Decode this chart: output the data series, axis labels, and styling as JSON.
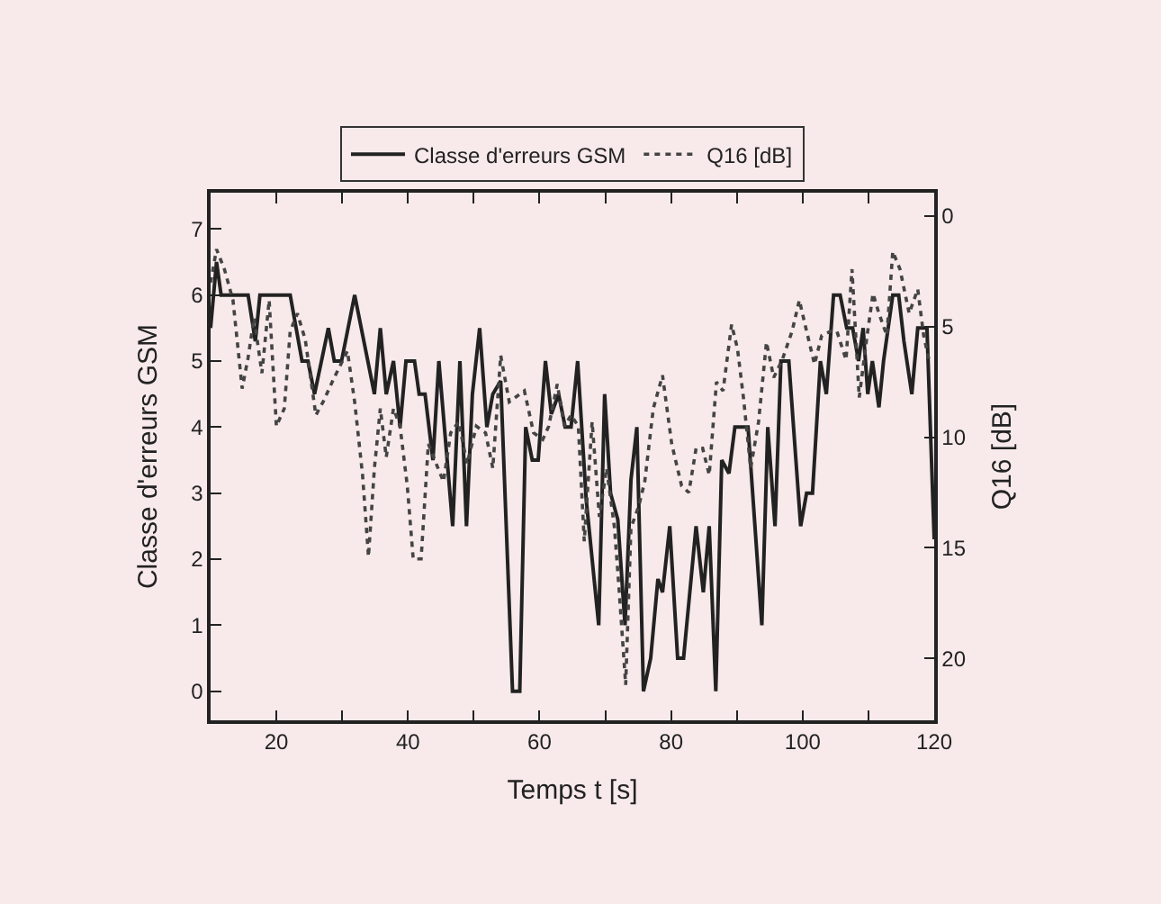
{
  "chart_data": {
    "type": "line",
    "xlabel": "Temps t [s]",
    "ylabel": "Classe d'erreurs GSM",
    "y2label": "Q16 [dB]",
    "xlim": [
      10,
      120
    ],
    "xticks": [
      20,
      {
        "value": 30,
        "label": null
      },
      40,
      {
        "value": 50,
        "label": null
      },
      60,
      {
        "value": 70,
        "label": null
      },
      80,
      {
        "value": 90,
        "label": null
      },
      100,
      {
        "value": 110,
        "label": null
      },
      120
    ],
    "ylim": [
      -0.44,
      7.55
    ],
    "yticks": [
      0,
      1,
      2,
      3,
      4,
      5,
      6,
      7
    ],
    "y2lim": [
      22.8,
      -1.06
    ],
    "y2ticks": [
      0,
      5,
      10,
      15,
      20
    ],
    "legend": "top",
    "grid": false,
    "marker": "none",
    "series": [
      {
        "name": "Classe d'erreurs GSM",
        "color": "#222222",
        "line_style": "solid",
        "x": [
          10,
          10.9,
          11.6,
          15.7,
          16.8,
          17.5,
          22.1,
          23.9,
          24.8,
          25.8,
          27.9,
          28.8,
          29.9,
          31.9,
          34.9,
          35.8,
          36.7,
          37.8,
          38.8,
          39.7,
          41,
          41.7,
          42.6,
          43.8,
          44.7,
          46.8,
          47.9,
          48.9,
          49.8,
          50.9,
          52,
          52.9,
          54.1,
          55.9,
          57,
          57.9,
          58.9,
          59.8,
          60.9,
          61.8,
          62.9,
          63.9,
          64.8,
          65.8,
          67.1,
          69,
          69.9,
          70.8,
          71.9,
          73,
          73.9,
          74.8,
          75.8,
          76.9,
          78,
          78.7,
          79.8,
          81,
          81.9,
          83.8,
          84.9,
          85.8,
          86.8,
          87.7,
          88.8,
          89.7,
          91.7,
          93.8,
          94.7,
          95.8,
          96.7,
          97.9,
          99.7,
          100.6,
          101.5,
          102.7,
          103.6,
          104.7,
          105.7,
          106.7,
          107.6,
          108.5,
          109.2,
          109.9,
          110.6,
          111.6,
          112.3,
          113.7,
          114.6,
          115.4,
          116.6,
          117.5,
          118.9,
          120
        ],
        "values": [
          5.5,
          6.5,
          6,
          6,
          5.3,
          6,
          6,
          5,
          5,
          4.5,
          5.5,
          5,
          5,
          6,
          4.5,
          5.5,
          4.5,
          5,
          4,
          5,
          5,
          4.5,
          4.5,
          3.5,
          5,
          2.5,
          5,
          2.5,
          4.5,
          5.5,
          4,
          4.5,
          4.7,
          0,
          0,
          4,
          3.5,
          3.5,
          5,
          4.2,
          4.5,
          4,
          4,
          5,
          2.9,
          1,
          4.5,
          3,
          2.6,
          1,
          3.2,
          4,
          0,
          0.5,
          1.7,
          1.5,
          2.5,
          0.5,
          0.5,
          2.5,
          1.5,
          2.5,
          0,
          3.5,
          3.3,
          4,
          4,
          1,
          4,
          2.5,
          5,
          5,
          2.5,
          3,
          3,
          5,
          4.5,
          6,
          6,
          5.5,
          5.5,
          5,
          5.5,
          4.5,
          5,
          4.3,
          5,
          6,
          6,
          5.3,
          4.5,
          5.5,
          5.5,
          2.3
        ]
      },
      {
        "name": "Q16 [dB]",
        "color": "#444444",
        "line_style": "dotted",
        "axis": "y2",
        "x": [
          10,
          10.9,
          12.1,
          13.4,
          14.8,
          15.7,
          16.6,
          17.8,
          18.9,
          20,
          21.2,
          22.1,
          23.2,
          24.4,
          26,
          27.1,
          28.8,
          30.8,
          31.9,
          33.1,
          34,
          34.9,
          35.8,
          36.7,
          37.8,
          38.8,
          39.9,
          40.8,
          42,
          43.1,
          44.3,
          45.4,
          46.5,
          47.7,
          49,
          50.4,
          51.8,
          52.9,
          54.1,
          55.4,
          57.7,
          59.1,
          60.5,
          61.4,
          62.7,
          63.8,
          64.8,
          65.9,
          66.8,
          68,
          69.1,
          70.2,
          71.4,
          72.1,
          73.1,
          73.9,
          75.1,
          76,
          77.3,
          78.7,
          80.1,
          81.6,
          82.7,
          83.8,
          84.8,
          85.8,
          86.9,
          87.9,
          89.2,
          90.1,
          91,
          92.1,
          93.3,
          94.5,
          95.6,
          96.9,
          98.4,
          99.5,
          100.6,
          101.8,
          102.9,
          104.3,
          105.2,
          106.6,
          107.5,
          108.6,
          109.8,
          110.7,
          111.6,
          112.8,
          113.7,
          114.8,
          116.2,
          117.5,
          118.4,
          119.2
        ],
        "values": [
          3.0,
          1.5,
          2.4,
          3.8,
          7.8,
          6.4,
          4.6,
          7.1,
          3.8,
          9.5,
          8.7,
          5.2,
          4.4,
          5.6,
          9.0,
          8.4,
          7.3,
          6.1,
          8.4,
          11.7,
          15.4,
          11.4,
          8.7,
          10.9,
          8.7,
          9.5,
          12.2,
          15.5,
          15.5,
          10.3,
          11.2,
          12.0,
          9.8,
          9.3,
          11.2,
          9.5,
          9.8,
          11.4,
          6.3,
          8.4,
          7.9,
          9.8,
          10.1,
          9.5,
          7.6,
          9.5,
          9.0,
          9.5,
          14.7,
          9.3,
          13.6,
          11.4,
          14.1,
          16.9,
          21.2,
          14.1,
          13.1,
          12.0,
          8.7,
          7.2,
          10.3,
          12.2,
          12.5,
          10.5,
          10.5,
          11.7,
          7.5,
          7.9,
          4.9,
          6.0,
          8.2,
          11.4,
          9.3,
          5.7,
          7.3,
          6.5,
          5.2,
          3.8,
          5.2,
          6.7,
          5.4,
          5.2,
          5.2,
          6.5,
          2.4,
          8.2,
          5.4,
          3.5,
          4.4,
          5.4,
          1.6,
          2.4,
          4.4,
          3.3,
          5.4,
          6.5
        ]
      }
    ]
  }
}
